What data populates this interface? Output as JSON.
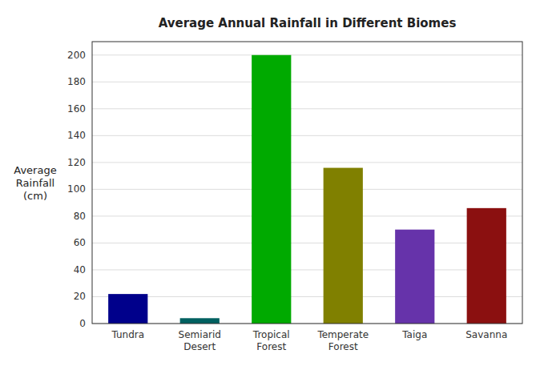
{
  "chart_data": {
    "type": "bar",
    "title": "Average Annual Rainfall in Different Biomes",
    "ylabel": "Average\nRainfall\n(cm)",
    "categories": [
      "Tundra",
      "Semiarid\nDesert",
      "Tropical\nForest",
      "Temperate\nForest",
      "Taiga",
      "Savanna"
    ],
    "values": [
      22,
      4,
      200,
      116,
      70,
      86
    ],
    "colors": [
      "#00008B",
      "#006060",
      "#00AA00",
      "#808000",
      "#6633AA",
      "#8B1010"
    ],
    "ylim": [
      0,
      210
    ],
    "yticks": [
      0,
      20,
      40,
      60,
      80,
      100,
      120,
      140,
      160,
      180,
      200
    ],
    "grid": true
  }
}
